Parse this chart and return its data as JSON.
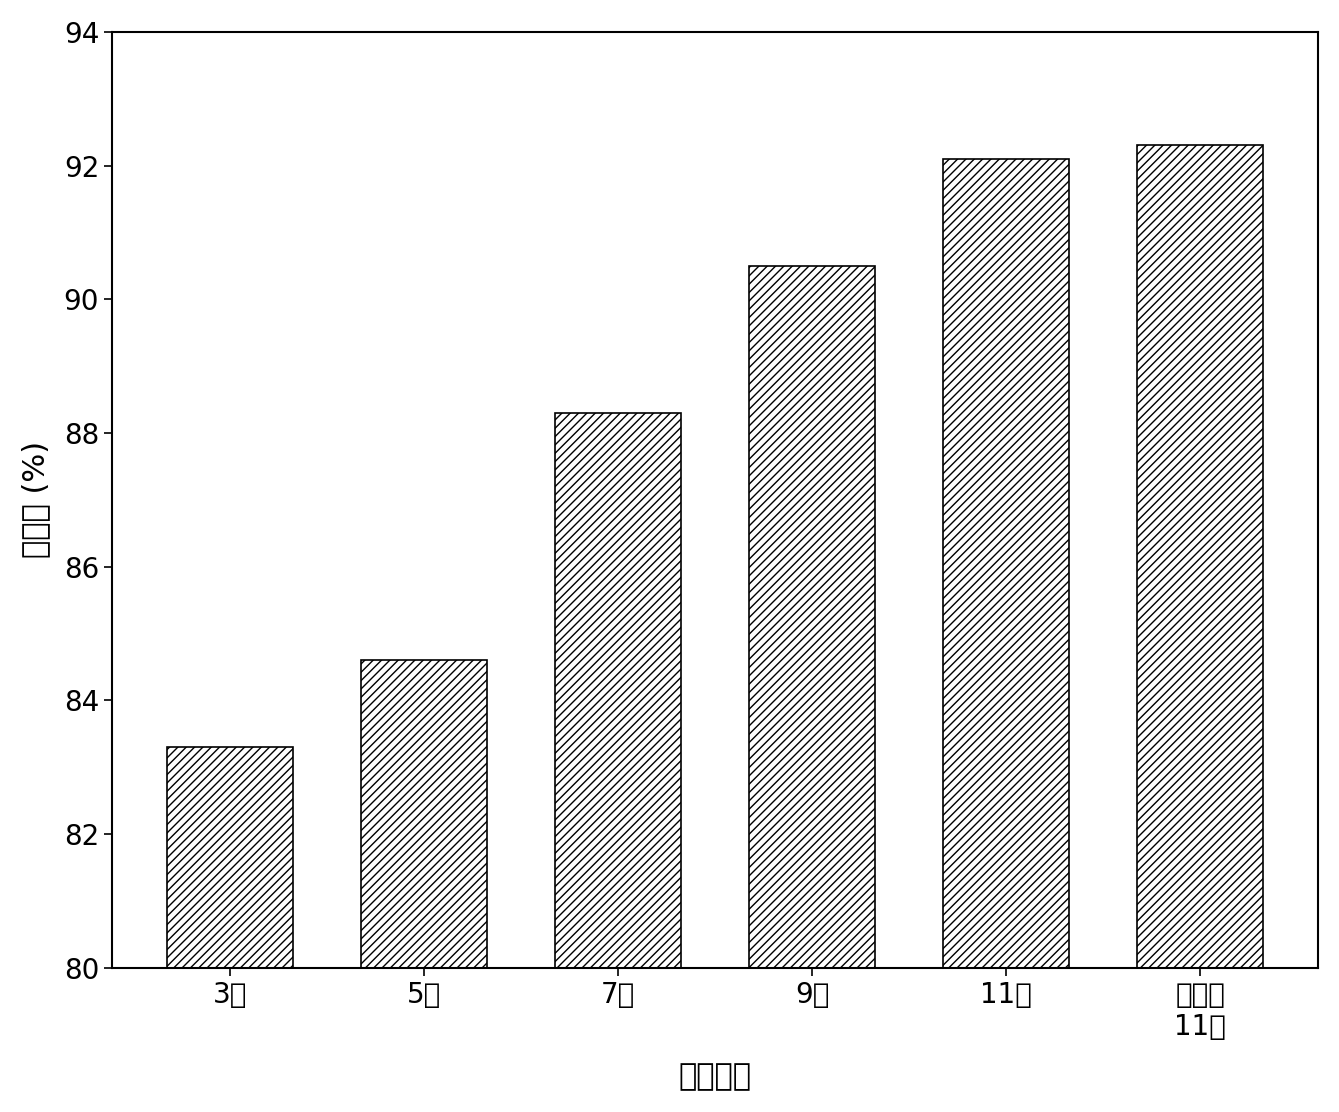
{
  "categories": [
    "3层",
    "5层",
    "7层",
    "9层",
    "11层",
    "混合网\n11层"
  ],
  "values": [
    83.3,
    84.6,
    88.3,
    90.5,
    92.1,
    92.3
  ],
  "ylim": [
    80,
    94
  ],
  "yticks": [
    80,
    82,
    84,
    86,
    88,
    90,
    92,
    94
  ],
  "xlabel": "隔网层数",
  "ylabel": "脸盐率 (%)",
  "bar_color": "#ffffff",
  "bar_edgecolor": "#000000",
  "hatch": "////",
  "bar_width": 0.65,
  "label_fontsize": 22,
  "tick_fontsize": 20,
  "background_color": "#ffffff"
}
